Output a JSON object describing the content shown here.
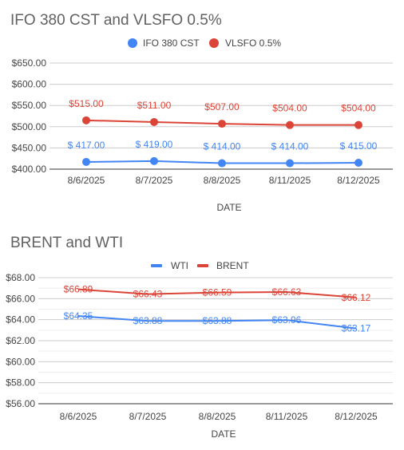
{
  "chart_data": [
    {
      "type": "line",
      "title": "IFO 380 CST and VLSFO 0.5%",
      "xlabel": "DATE",
      "ylabel": "",
      "categories": [
        "8/6/2025",
        "8/7/2025",
        "8/8/2025",
        "8/11/2025",
        "8/12/2025"
      ],
      "ylim": [
        400,
        650
      ],
      "yticks": [
        "$400.00",
        "$450.00",
        "$500.00",
        "$550.00",
        "$600.00",
        "$650.00"
      ],
      "ytick_values": [
        400,
        450,
        500,
        550,
        600,
        650
      ],
      "legend_position": "top",
      "markers": true,
      "grid": true,
      "series": [
        {
          "name": "IFO 380 CST",
          "color": "#4285f4",
          "values": [
            417,
            419,
            414,
            414,
            415
          ],
          "labels": [
            "$ 417.00",
            "$ 419.00",
            "$ 414.00",
            "$ 414.00",
            "$ 415.00"
          ]
        },
        {
          "name": "VLSFO 0.5%",
          "color": "#db4437",
          "values": [
            515,
            511,
            507,
            504,
            504
          ],
          "labels": [
            "$515.00",
            "$511.00",
            "$507.00",
            "$504.00",
            "$504.00"
          ]
        }
      ]
    },
    {
      "type": "line",
      "title": "BRENT and WTI",
      "xlabel": "DATE",
      "ylabel": "",
      "categories": [
        "8/6/2025",
        "8/7/2025",
        "8/8/2025",
        "8/11/2025",
        "8/12/2025"
      ],
      "ylim": [
        56,
        68
      ],
      "yticks": [
        "$56.00",
        "$58.00",
        "$60.00",
        "$62.00",
        "$64.00",
        "$66.00",
        "$68.00"
      ],
      "ytick_values": [
        56,
        58,
        60,
        62,
        64,
        66,
        68
      ],
      "legend_position": "top",
      "markers": false,
      "grid": true,
      "series": [
        {
          "name": "WTI",
          "color": "#4285f4",
          "values": [
            64.35,
            63.88,
            63.88,
            63.96,
            63.17
          ],
          "labels": [
            "$64.35",
            "$63.88",
            "$63.88",
            "$63.96",
            "$63.17"
          ]
        },
        {
          "name": "BRENT",
          "color": "#db4437",
          "values": [
            66.89,
            66.43,
            66.59,
            66.63,
            66.12
          ],
          "labels": [
            "$66.89",
            "$66.43",
            "$66.59",
            "$66.63",
            "$66.12"
          ]
        }
      ]
    }
  ]
}
